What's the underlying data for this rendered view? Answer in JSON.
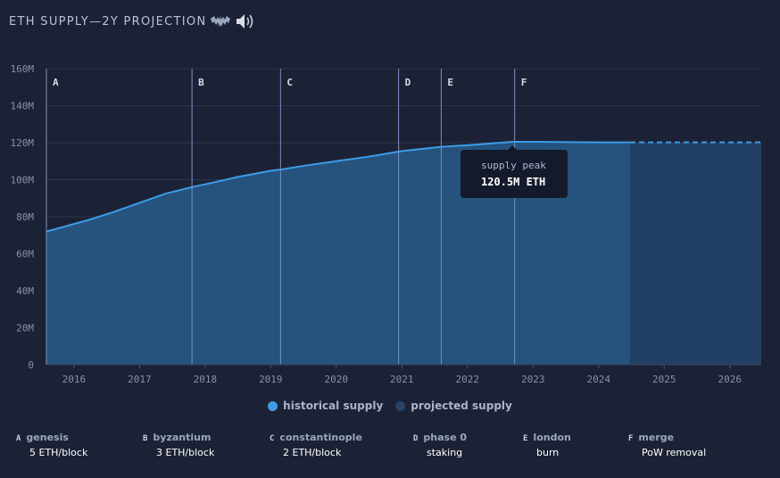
{
  "header": {
    "title": "ETH SUPPLY—2Y PROJECTION",
    "icons": [
      "bat-icon",
      "speaker-icon"
    ]
  },
  "colors": {
    "background": "#1c2235",
    "historical_line": "#3d9ce8",
    "historical_fill": "#25537d",
    "projected_fill": "#213f63",
    "projected_line": "#3d9ce8",
    "marker_line": "#7c8fc4",
    "grid": "#2b3350"
  },
  "legend": [
    {
      "label": "historical supply",
      "color": "#3d9ce8"
    },
    {
      "label": "projected supply",
      "color": "#26446a"
    }
  ],
  "tooltip": {
    "label": "supply peak",
    "value": "120.5M ETH"
  },
  "chart_data": {
    "type": "area",
    "title": "ETH SUPPLY—2Y PROJECTION",
    "xlabel": "",
    "ylabel": "",
    "xlim": [
      2015.58,
      2026.48
    ],
    "ylim": [
      0,
      160
    ],
    "y_ticks": [
      0,
      20,
      40,
      60,
      80,
      100,
      120,
      140,
      160
    ],
    "y_tick_labels": [
      "0",
      "20M",
      "40M",
      "60M",
      "80M",
      "100M",
      "120M",
      "140M",
      "160M"
    ],
    "x_ticks": [
      2016,
      2017,
      2018,
      2019,
      2020,
      2021,
      2022,
      2023,
      2024,
      2025,
      2026
    ],
    "x_tick_labels": [
      "2016",
      "2017",
      "2018",
      "2019",
      "2020",
      "2021",
      "2022",
      "2023",
      "2024",
      "2025",
      "2026"
    ],
    "grid": true,
    "legend_position": "bottom",
    "series": [
      {
        "name": "historical supply",
        "x": [
          2015.58,
          2016.2,
          2016.6,
          2017.0,
          2017.4,
          2017.8,
          2018.0,
          2018.5,
          2019.0,
          2019.2,
          2019.5,
          2020.0,
          2020.5,
          2021.0,
          2021.4,
          2021.6,
          2022.0,
          2022.4,
          2022.7,
          2023.0,
          2023.5,
          2024.0,
          2024.48
        ],
        "values": [
          72.0,
          78.0,
          82.5,
          87.5,
          92.5,
          96.0,
          97.5,
          101.5,
          104.8,
          105.7,
          107.5,
          110.0,
          112.5,
          115.5,
          117.0,
          117.8,
          118.6,
          119.7,
          120.5,
          120.5,
          120.3,
          120.2,
          120.2
        ]
      },
      {
        "name": "projected supply",
        "x": [
          2024.48,
          2025.0,
          2025.5,
          2026.0,
          2026.48
        ],
        "values": [
          120.2,
          120.2,
          120.2,
          120.2,
          120.2
        ]
      }
    ],
    "annotations": [
      {
        "letter": "A",
        "x": 2015.58,
        "name": "genesis",
        "desc": "5 ETH/block"
      },
      {
        "letter": "B",
        "x": 2017.8,
        "name": "byzantium",
        "desc": "3 ETH/block"
      },
      {
        "letter": "C",
        "x": 2019.15,
        "name": "constantinople",
        "desc": "2 ETH/block"
      },
      {
        "letter": "D",
        "x": 2020.95,
        "name": "phase 0",
        "desc": "staking"
      },
      {
        "letter": "E",
        "x": 2021.6,
        "name": "london",
        "desc": "burn"
      },
      {
        "letter": "F",
        "x": 2022.72,
        "name": "merge",
        "desc": "PoW removal"
      }
    ],
    "peak": {
      "x": 2022.72,
      "value": 120.5
    }
  }
}
